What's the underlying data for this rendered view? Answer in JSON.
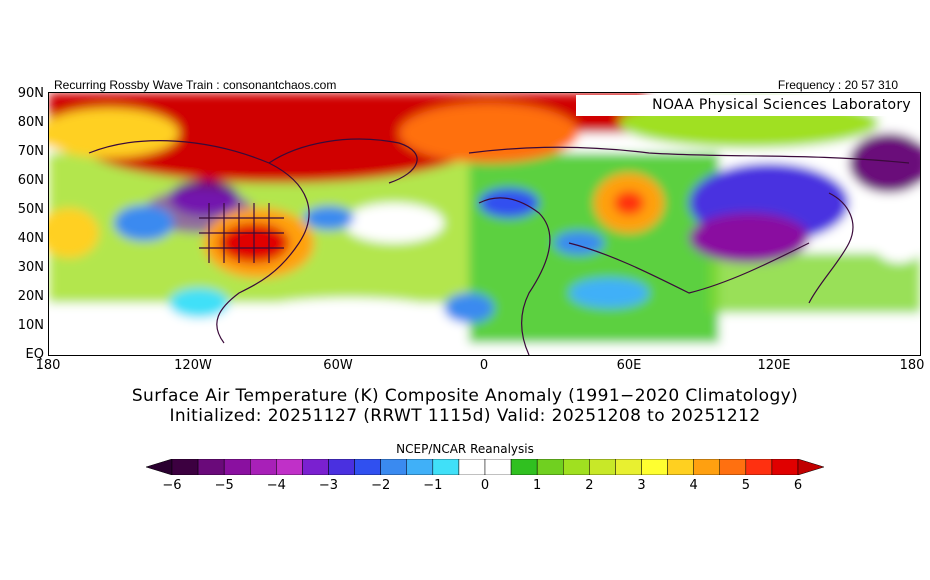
{
  "header": {
    "left": "Recurring Rossby Wave Train : consonantchaos.com",
    "right": "Frequency : 20 57 310"
  },
  "map": {
    "badge": "NOAA Physical Sciences Laboratory",
    "lat_labels": [
      "90N",
      "80N",
      "70N",
      "60N",
      "50N",
      "40N",
      "30N",
      "20N",
      "10N",
      "EQ"
    ],
    "lon_labels": [
      "180",
      "120W",
      "60W",
      "0",
      "60E",
      "120E",
      "180"
    ]
  },
  "title": {
    "line1": "Surface Air Temperature (K) Composite Anomaly (1991−2020 Climatology)",
    "line2": "Initialized: 20251127 (RRWT 1115d) Valid: 20251208 to 20251212"
  },
  "colorbar": {
    "source": "NCEP/NCAR Reanalysis",
    "tick_labels": [
      "−6",
      "−5",
      "−4",
      "−3",
      "−2",
      "−1",
      "0",
      "1",
      "2",
      "3",
      "4",
      "5",
      "6"
    ],
    "colors": [
      "#3c0040",
      "#6a0a7a",
      "#8a10a0",
      "#a820b8",
      "#c030c8",
      "#7a20d0",
      "#4a30e0",
      "#3050f0",
      "#3a8af0",
      "#40b0f8",
      "#40e0f8",
      "#ffffff",
      "#ffffff",
      "#30c020",
      "#70d020",
      "#a0e020",
      "#c8e828",
      "#e8f030",
      "#ffff30",
      "#ffd020",
      "#ffa010",
      "#ff7010",
      "#ff3010",
      "#e00000"
    ]
  }
}
